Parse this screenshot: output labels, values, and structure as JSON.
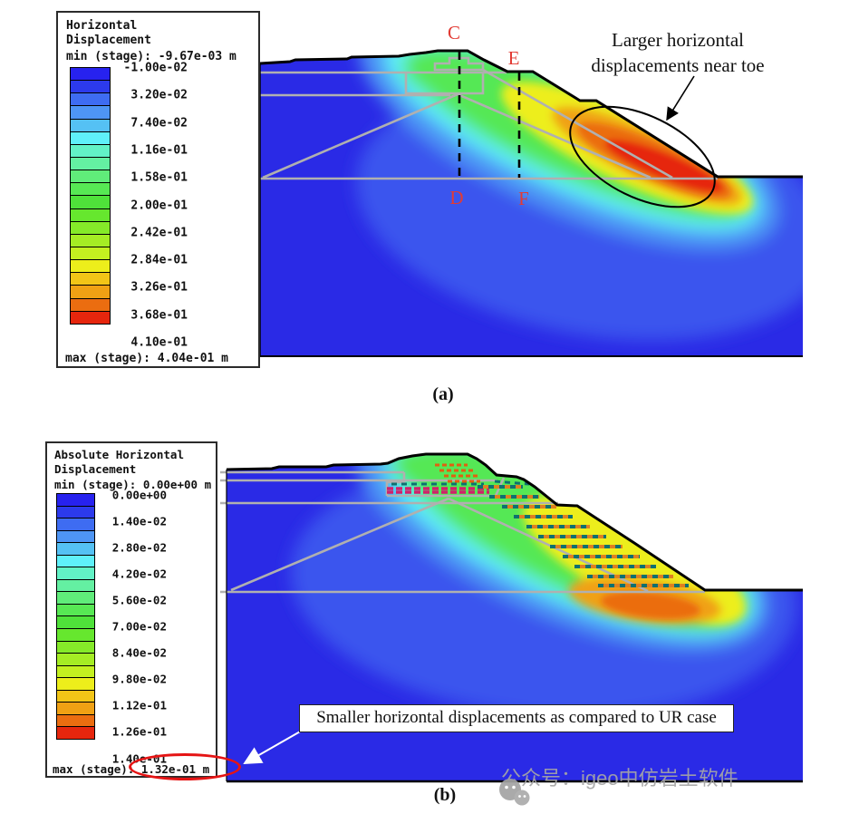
{
  "panel_a": {
    "legend": {
      "title": "Horizontal\nDisplacement",
      "min_label": "min (stage): -9.67e-03 m",
      "max_label": "max (stage): 4.04e-01 m",
      "tick_labels": [
        "-1.00e-02",
        "3.20e-02",
        "7.40e-02",
        "1.16e-01",
        "1.58e-01",
        "2.00e-01",
        "2.42e-01",
        "2.84e-01",
        "3.26e-01",
        "3.68e-01",
        "4.10e-01"
      ]
    },
    "section_labels": {
      "c": "C",
      "d": "D",
      "e": "E",
      "f": "F"
    },
    "annotation": "Larger horizontal\ndisplacements near toe",
    "caption": "(a)"
  },
  "panel_b": {
    "legend": {
      "title": "Absolute Horizontal\nDisplacement",
      "min_label": "min (stage): 0.00e+00 m",
      "max_label": "max (stage): 1.32e-01 m",
      "tick_labels": [
        "0.00e+00",
        "1.40e-02",
        "2.80e-02",
        "4.20e-02",
        "5.60e-02",
        "7.00e-02",
        "8.40e-02",
        "9.80e-02",
        "1.12e-01",
        "1.26e-01",
        "1.40e-01"
      ]
    },
    "annotation": "Smaller horizontal displacements as compared to UR case",
    "caption": "(b)"
  },
  "watermark": {
    "text": "公众号：igeo中仿岩土软件"
  },
  "palette": [
    "#2722EF",
    "#2C3AEC",
    "#3E6CF2",
    "#4E95F5",
    "#55C1F4",
    "#5FF0FA",
    "#62F2C6",
    "#64F0A2",
    "#60EC7A",
    "#57E854",
    "#4FE13A",
    "#66E72E",
    "#85EA29",
    "#A5ED24",
    "#C4F020",
    "#EDEE1B",
    "#F2C517",
    "#F0A114",
    "#EB6D10",
    "#E6260D"
  ],
  "colors": {
    "field_base_blue": "#2A2AE6",
    "max_red": "#E6260D",
    "max_orange": "#EB6D10",
    "grey_structure_line": "#B0B0B0",
    "section_label_red": "#E23B34",
    "highlight_ellipse_red": "#E51414"
  },
  "chart_data": [
    {
      "type": "heatmap",
      "title": "Horizontal Displacement",
      "units": "m",
      "min_stage": "-9.67e-03",
      "max_stage": "4.04e-01",
      "levels": [
        -0.01,
        0.032,
        0.074,
        0.116,
        0.158,
        0.2,
        0.242,
        0.284,
        0.326,
        0.368,
        0.41
      ],
      "legend_position": "left",
      "caption": "(a)",
      "annotations": [
        "Larger horizontal displacements near toe"
      ],
      "section_lines": [
        "C-D",
        "E-F"
      ],
      "description": "Contour plot of horizontal displacement in an unreinforced slope; maximum (red) displacements concentrated near the slope toe."
    },
    {
      "type": "heatmap",
      "title": "Absolute Horizontal Displacement",
      "units": "m",
      "min_stage": "0.00e+00",
      "max_stage": "1.32e-01",
      "levels": [
        0,
        0.014,
        0.028,
        0.042,
        0.056,
        0.07,
        0.084,
        0.098,
        0.112,
        0.126,
        0.14
      ],
      "legend_position": "left",
      "caption": "(b)",
      "annotations": [
        "Smaller horizontal displacements as compared to UR case"
      ],
      "description": "Contour plot of absolute horizontal displacement for the reinforced (nailed) slope; maximum orange zone below the toe."
    }
  ]
}
